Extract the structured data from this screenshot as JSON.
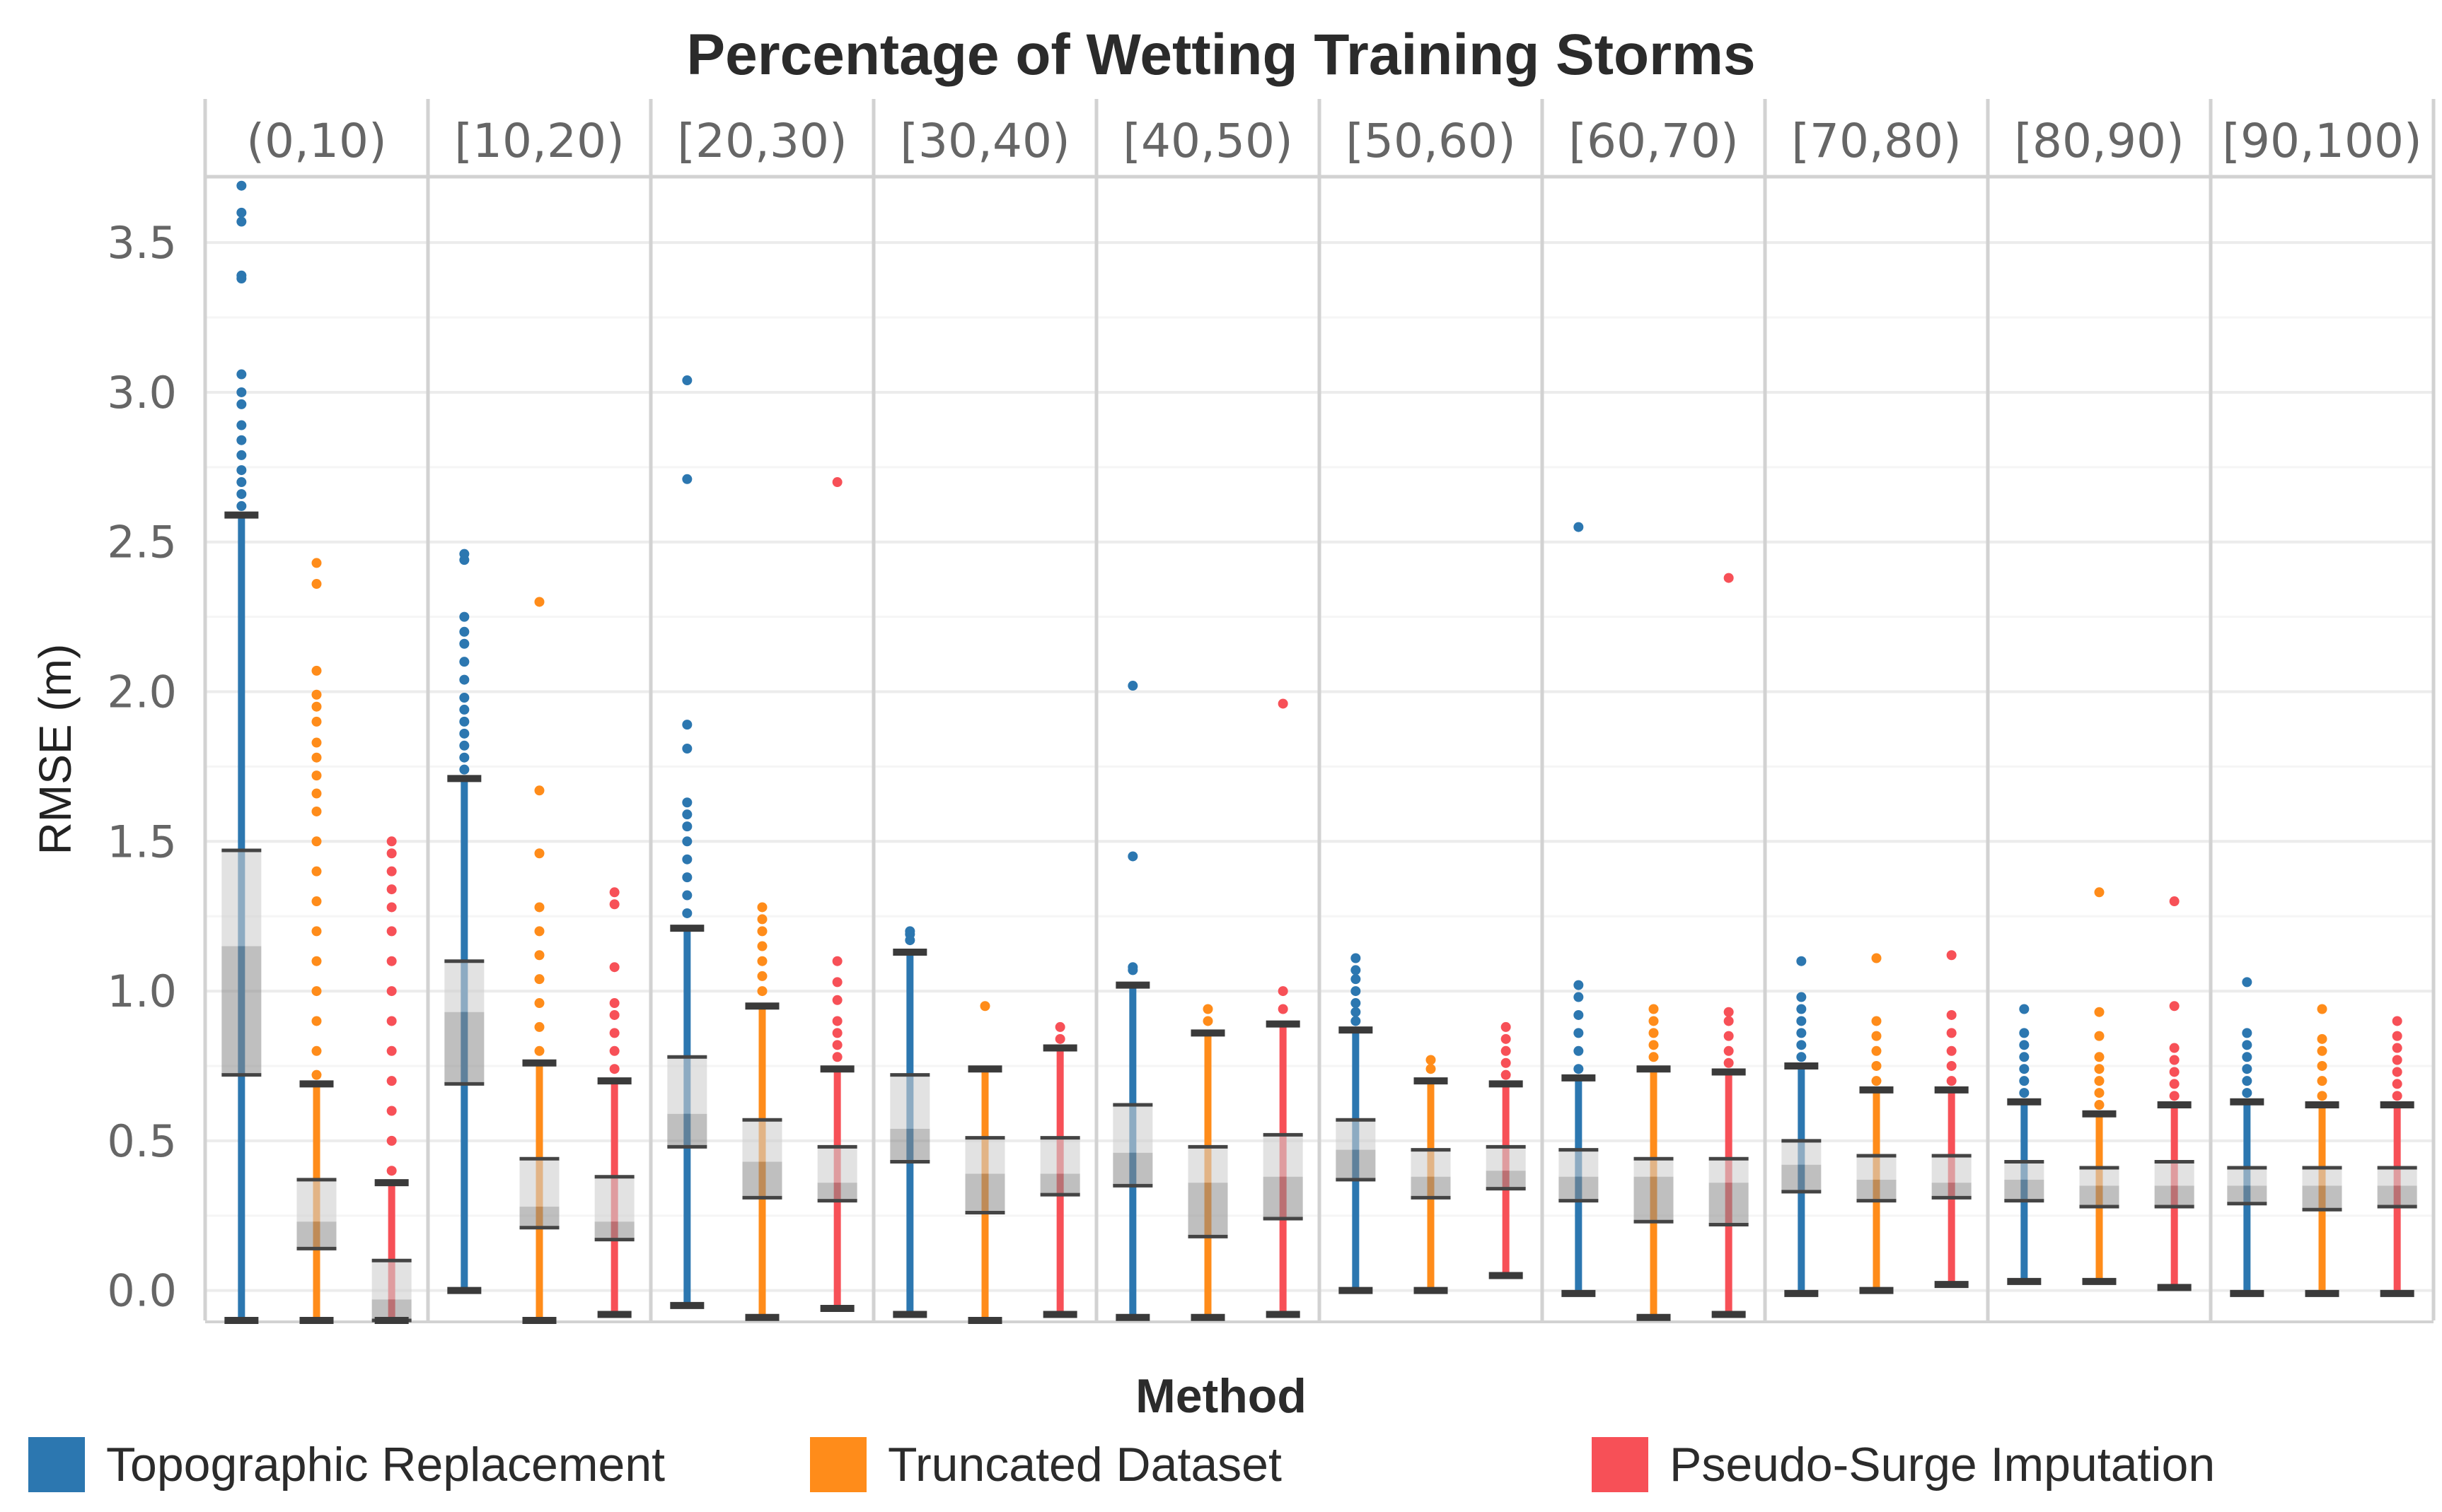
{
  "chart_data": {
    "type": "box",
    "title": "Percentage of Wetting Training Storms",
    "xlabel": "Method",
    "ylabel": "RMSE (m)",
    "ylim": [
      -0.1,
      3.72
    ],
    "yticks": [
      0.0,
      0.5,
      1.0,
      1.5,
      2.0,
      2.5,
      3.0,
      3.5
    ],
    "ytick_labels": [
      "0.0",
      "0.5",
      "1.0",
      "1.5",
      "2.0",
      "2.5",
      "3.0",
      "3.5"
    ],
    "facets": [
      "(0,10)",
      "[10,20)",
      "[20,30)",
      "[30,40)",
      "[40,50)",
      "[50,60)",
      "[60,70)",
      "[70,80)",
      "[80,90)",
      "[90,100)"
    ],
    "series": [
      {
        "name": "Topographic Replacement",
        "color": "#2c77b0"
      },
      {
        "name": "Truncated Dataset",
        "color": "#ff8c1a"
      },
      {
        "name": "Pseudo-Surge Imputation",
        "color": "#f75057"
      }
    ],
    "boxes": [
      [
        {
          "min": -0.1,
          "q1": 0.72,
          "median": 1.15,
          "q3": 1.47,
          "max": 2.59,
          "outliers": [
            2.62,
            2.66,
            2.7,
            2.74,
            2.79,
            2.84,
            2.89,
            2.96,
            3.0,
            3.06,
            3.38,
            3.39,
            3.57,
            3.6,
            3.69
          ]
        },
        {
          "min": -0.1,
          "q1": 0.14,
          "median": 0.23,
          "q3": 0.37,
          "max": 0.69,
          "outliers": [
            0.72,
            0.8,
            0.9,
            1.0,
            1.1,
            1.2,
            1.3,
            1.4,
            1.5,
            1.6,
            1.66,
            1.72,
            1.78,
            1.83,
            1.9,
            1.95,
            1.99,
            2.07,
            2.36,
            2.43
          ]
        },
        {
          "min": -0.1,
          "q1": -0.1,
          "median": -0.03,
          "q3": 0.1,
          "max": 0.36,
          "outliers": [
            0.4,
            0.5,
            0.6,
            0.7,
            0.8,
            0.9,
            1.0,
            1.1,
            1.2,
            1.28,
            1.34,
            1.4,
            1.46,
            1.5
          ]
        }
      ],
      [
        {
          "min": 0.0,
          "q1": 0.69,
          "median": 0.93,
          "q3": 1.1,
          "max": 1.71,
          "outliers": [
            1.74,
            1.78,
            1.82,
            1.86,
            1.9,
            1.94,
            1.98,
            2.04,
            2.1,
            2.16,
            2.2,
            2.25,
            2.44,
            2.46
          ]
        },
        {
          "min": -0.1,
          "q1": 0.21,
          "median": 0.28,
          "q3": 0.44,
          "max": 0.76,
          "outliers": [
            0.8,
            0.88,
            0.96,
            1.04,
            1.12,
            1.2,
            1.28,
            1.46,
            1.67,
            2.3
          ]
        },
        {
          "min": -0.08,
          "q1": 0.17,
          "median": 0.23,
          "q3": 0.38,
          "max": 0.7,
          "outliers": [
            0.74,
            0.8,
            0.86,
            0.92,
            0.96,
            1.08,
            1.29,
            1.33
          ]
        }
      ],
      [
        {
          "min": -0.05,
          "q1": 0.48,
          "median": 0.59,
          "q3": 0.78,
          "max": 1.21,
          "outliers": [
            1.26,
            1.32,
            1.38,
            1.44,
            1.5,
            1.55,
            1.59,
            1.63,
            1.81,
            1.89,
            2.71,
            3.04
          ]
        },
        {
          "min": -0.09,
          "q1": 0.31,
          "median": 0.43,
          "q3": 0.57,
          "max": 0.95,
          "outliers": [
            1.0,
            1.05,
            1.1,
            1.15,
            1.2,
            1.24,
            1.28
          ]
        },
        {
          "min": -0.06,
          "q1": 0.3,
          "median": 0.36,
          "q3": 0.48,
          "max": 0.74,
          "outliers": [
            0.78,
            0.82,
            0.86,
            0.9,
            0.97,
            1.03,
            1.1,
            2.7
          ]
        }
      ],
      [
        {
          "min": -0.08,
          "q1": 0.43,
          "median": 0.54,
          "q3": 0.72,
          "max": 1.13,
          "outliers": [
            1.17,
            1.19,
            1.2
          ]
        },
        {
          "min": -0.1,
          "q1": 0.26,
          "median": 0.39,
          "q3": 0.51,
          "max": 0.74,
          "outliers": [
            0.95
          ]
        },
        {
          "min": -0.08,
          "q1": 0.32,
          "median": 0.39,
          "q3": 0.51,
          "max": 0.81,
          "outliers": [
            0.84,
            0.88
          ]
        }
      ],
      [
        {
          "min": -0.09,
          "q1": 0.35,
          "median": 0.46,
          "q3": 0.62,
          "max": 1.02,
          "outliers": [
            1.07,
            1.08,
            1.45,
            2.02
          ]
        },
        {
          "min": -0.09,
          "q1": 0.18,
          "median": 0.36,
          "q3": 0.48,
          "max": 0.86,
          "outliers": [
            0.9,
            0.94
          ]
        },
        {
          "min": -0.08,
          "q1": 0.24,
          "median": 0.38,
          "q3": 0.52,
          "max": 0.89,
          "outliers": [
            0.94,
            1.0,
            1.96
          ]
        }
      ],
      [
        {
          "min": 0.0,
          "q1": 0.37,
          "median": 0.47,
          "q3": 0.57,
          "max": 0.87,
          "outliers": [
            0.9,
            0.93,
            0.96,
            1.0,
            1.04,
            1.07,
            1.11
          ]
        },
        {
          "min": 0.0,
          "q1": 0.31,
          "median": 0.38,
          "q3": 0.47,
          "max": 0.7,
          "outliers": [
            0.74,
            0.77
          ]
        },
        {
          "min": 0.05,
          "q1": 0.34,
          "median": 0.4,
          "q3": 0.48,
          "max": 0.69,
          "outliers": [
            0.72,
            0.76,
            0.8,
            0.84,
            0.88
          ]
        }
      ],
      [
        {
          "min": -0.01,
          "q1": 0.3,
          "median": 0.38,
          "q3": 0.47,
          "max": 0.71,
          "outliers": [
            0.74,
            0.8,
            0.86,
            0.92,
            0.98,
            1.02,
            2.55
          ]
        },
        {
          "min": -0.09,
          "q1": 0.23,
          "median": 0.38,
          "q3": 0.44,
          "max": 0.74,
          "outliers": [
            0.78,
            0.82,
            0.86,
            0.9,
            0.94
          ]
        },
        {
          "min": -0.08,
          "q1": 0.22,
          "median": 0.36,
          "q3": 0.44,
          "max": 0.73,
          "outliers": [
            0.76,
            0.8,
            0.85,
            0.9,
            0.93,
            2.38
          ]
        }
      ],
      [
        {
          "min": -0.01,
          "q1": 0.33,
          "median": 0.42,
          "q3": 0.5,
          "max": 0.75,
          "outliers": [
            0.78,
            0.82,
            0.86,
            0.9,
            0.94,
            0.98,
            1.1
          ]
        },
        {
          "min": 0.0,
          "q1": 0.3,
          "median": 0.37,
          "q3": 0.45,
          "max": 0.67,
          "outliers": [
            0.7,
            0.75,
            0.8,
            0.85,
            0.9,
            1.11
          ]
        },
        {
          "min": 0.02,
          "q1": 0.31,
          "median": 0.36,
          "q3": 0.45,
          "max": 0.67,
          "outliers": [
            0.7,
            0.75,
            0.8,
            0.86,
            0.92,
            1.12
          ]
        }
      ],
      [
        {
          "min": 0.03,
          "q1": 0.3,
          "median": 0.37,
          "q3": 0.43,
          "max": 0.63,
          "outliers": [
            0.66,
            0.7,
            0.74,
            0.78,
            0.82,
            0.86,
            0.94
          ]
        },
        {
          "min": 0.03,
          "q1": 0.28,
          "median": 0.35,
          "q3": 0.41,
          "max": 0.59,
          "outliers": [
            0.62,
            0.66,
            0.7,
            0.74,
            0.78,
            0.85,
            0.93,
            1.33
          ]
        },
        {
          "min": 0.01,
          "q1": 0.28,
          "median": 0.35,
          "q3": 0.43,
          "max": 0.62,
          "outliers": [
            0.65,
            0.69,
            0.73,
            0.77,
            0.81,
            0.95,
            1.3
          ]
        }
      ],
      [
        {
          "min": -0.01,
          "q1": 0.29,
          "median": 0.35,
          "q3": 0.41,
          "max": 0.63,
          "outliers": [
            0.66,
            0.7,
            0.74,
            0.78,
            0.82,
            0.86,
            1.03
          ]
        },
        {
          "min": -0.01,
          "q1": 0.27,
          "median": 0.35,
          "q3": 0.41,
          "max": 0.62,
          "outliers": [
            0.65,
            0.7,
            0.75,
            0.8,
            0.84,
            0.94
          ]
        },
        {
          "min": -0.01,
          "q1": 0.28,
          "median": 0.35,
          "q3": 0.41,
          "max": 0.62,
          "outliers": [
            0.65,
            0.69,
            0.73,
            0.77,
            0.81,
            0.85,
            0.9
          ]
        }
      ]
    ]
  }
}
